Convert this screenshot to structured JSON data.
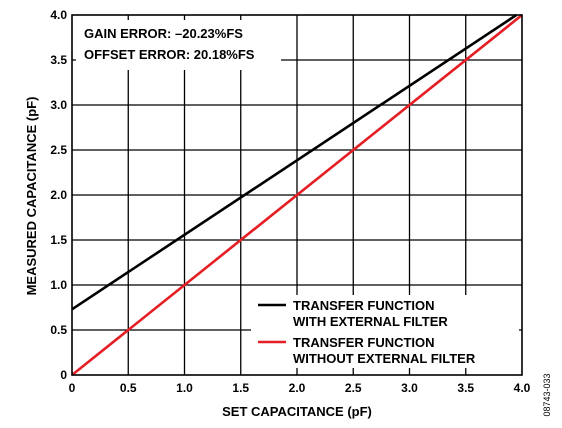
{
  "chart_data": {
    "type": "line",
    "xlabel": "SET CAPACITANCE (pF)",
    "ylabel": "MEASURED CAPACITANCE (pF)",
    "xlim": [
      0,
      4.0
    ],
    "ylim": [
      0,
      4.0
    ],
    "x_ticks": [
      "0",
      "0.5",
      "1.0",
      "1.5",
      "2.0",
      "2.5",
      "3.0",
      "3.5",
      "4.0"
    ],
    "y_ticks": [
      "0",
      "0.5",
      "1.0",
      "1.5",
      "2.0",
      "2.5",
      "3.0",
      "3.5",
      "4.0"
    ],
    "grid": true,
    "legend_position": "bottom-right",
    "annotations": [
      "GAIN ERROR: –20.23%FS",
      "OFFSET ERROR: 20.18%FS"
    ],
    "figure_id": "08743-033",
    "series": [
      {
        "name": "TRANSFER FUNCTION WITH EXTERNAL FILTER",
        "legend_lines": [
          "TRANSFER FUNCTION",
          "WITH EXTERNAL FILTER"
        ],
        "color": "#000000",
        "x": [
          0,
          3.95
        ],
        "y": [
          0.73,
          4.0
        ]
      },
      {
        "name": "TRANSFER FUNCTION WITHOUT EXTERNAL FILTER",
        "legend_lines": [
          "TRANSFER FUNCTION",
          "WITHOUT EXTERNAL FILTER"
        ],
        "color": "#e31e24",
        "x": [
          0,
          4.0
        ],
        "y": [
          0,
          4.0
        ]
      }
    ]
  }
}
